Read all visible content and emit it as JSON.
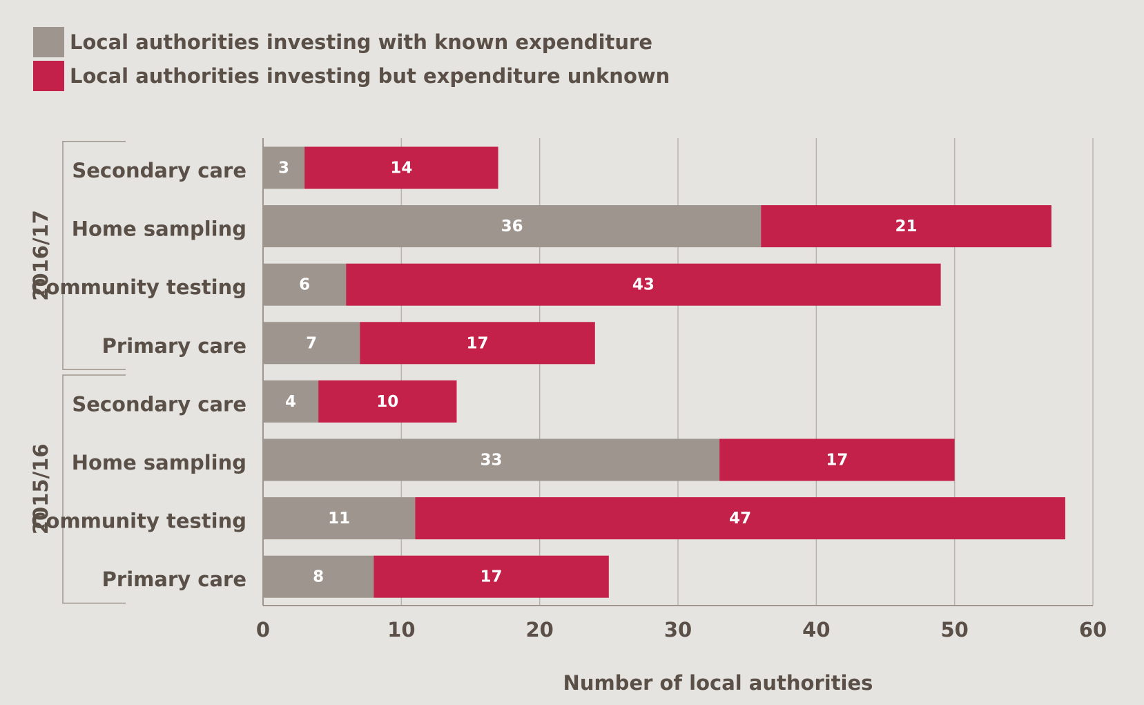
{
  "chart_data": {
    "type": "stacked-barh",
    "categories": [
      "Secondary care",
      "Home sampling",
      "Community testing",
      "Primary care",
      "Secondary care",
      "Home sampling",
      "Community testing",
      "Primary care"
    ],
    "groups": [
      "2016/17",
      "2015/16"
    ],
    "series": [
      {
        "name": "Local authorities investing with known expenditure",
        "color": "#9e958e",
        "values": [
          3,
          36,
          6,
          7,
          4,
          33,
          11,
          8
        ]
      },
      {
        "name": "Local authorities investing but expenditure unknown",
        "color": "#c4214a",
        "values": [
          14,
          21,
          43,
          17,
          10,
          17,
          47,
          17
        ]
      }
    ],
    "xlabel": "Number of local authorities",
    "xlim": [
      0,
      60
    ],
    "xticks": [
      0,
      10,
      20,
      30,
      40,
      50,
      60
    ],
    "grid": true
  }
}
